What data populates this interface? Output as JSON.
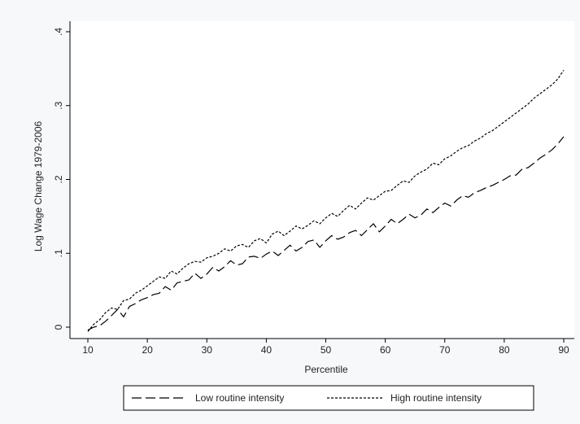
{
  "chart_data": {
    "type": "line",
    "xlabel": "Percentile",
    "ylabel": "Log Wage Change 1979-2006",
    "xlim": [
      10,
      90
    ],
    "ylim": [
      0,
      0.4
    ],
    "x_ticks": [
      10,
      20,
      30,
      40,
      50,
      60,
      70,
      80,
      90
    ],
    "x_tick_labels": [
      "10",
      "20",
      "30",
      "40",
      "50",
      "60",
      "70",
      "80",
      "90"
    ],
    "y_ticks": [
      0,
      0.1,
      0.2,
      0.3,
      0.4
    ],
    "y_tick_labels": [
      "0",
      ".1",
      ".2",
      ".3",
      ".4"
    ],
    "grid": false,
    "legend_position": "bottom",
    "series": [
      {
        "name": "Low routine intensity",
        "line_style": "long-dash",
        "color": "#000000",
        "x": [
          10,
          11,
          12,
          13,
          14,
          15,
          16,
          17,
          18,
          19,
          20,
          21,
          22,
          23,
          24,
          25,
          26,
          27,
          28,
          29,
          30,
          31,
          32,
          33,
          34,
          35,
          36,
          37,
          38,
          39,
          40,
          41,
          42,
          43,
          44,
          45,
          46,
          47,
          48,
          49,
          50,
          51,
          52,
          53,
          54,
          55,
          56,
          57,
          58,
          59,
          60,
          61,
          62,
          63,
          64,
          65,
          66,
          67,
          68,
          69,
          70,
          71,
          72,
          73,
          74,
          75,
          76,
          77,
          78,
          79,
          80,
          81,
          82,
          83,
          84,
          85,
          86,
          87,
          88,
          89,
          90
        ],
        "y": [
          -0.004,
          0.0,
          0.002,
          0.008,
          0.016,
          0.024,
          0.014,
          0.028,
          0.032,
          0.037,
          0.04,
          0.044,
          0.046,
          0.055,
          0.05,
          0.06,
          0.062,
          0.064,
          0.073,
          0.066,
          0.072,
          0.081,
          0.076,
          0.082,
          0.09,
          0.084,
          0.086,
          0.095,
          0.096,
          0.093,
          0.099,
          0.103,
          0.097,
          0.104,
          0.111,
          0.103,
          0.108,
          0.116,
          0.118,
          0.108,
          0.117,
          0.124,
          0.119,
          0.122,
          0.128,
          0.131,
          0.124,
          0.132,
          0.14,
          0.129,
          0.137,
          0.146,
          0.14,
          0.146,
          0.153,
          0.148,
          0.152,
          0.16,
          0.155,
          0.162,
          0.168,
          0.164,
          0.172,
          0.178,
          0.176,
          0.182,
          0.185,
          0.189,
          0.192,
          0.196,
          0.2,
          0.205,
          0.206,
          0.214,
          0.216,
          0.222,
          0.229,
          0.234,
          0.24,
          0.248,
          0.258
        ]
      },
      {
        "name": "High routine intensity",
        "line_style": "short-dash",
        "color": "#000000",
        "x": [
          10,
          11,
          12,
          13,
          14,
          15,
          16,
          17,
          18,
          19,
          20,
          21,
          22,
          23,
          24,
          25,
          26,
          27,
          28,
          29,
          30,
          31,
          32,
          33,
          34,
          35,
          36,
          37,
          38,
          39,
          40,
          41,
          42,
          43,
          44,
          45,
          46,
          47,
          48,
          49,
          50,
          51,
          52,
          53,
          54,
          55,
          56,
          57,
          58,
          59,
          60,
          61,
          62,
          63,
          64,
          65,
          66,
          67,
          68,
          69,
          70,
          71,
          72,
          73,
          74,
          75,
          76,
          77,
          78,
          79,
          80,
          81,
          82,
          83,
          84,
          85,
          86,
          87,
          88,
          89,
          90
        ],
        "y": [
          -0.006,
          0.004,
          0.01,
          0.02,
          0.026,
          0.024,
          0.036,
          0.038,
          0.046,
          0.05,
          0.056,
          0.062,
          0.068,
          0.066,
          0.076,
          0.072,
          0.08,
          0.086,
          0.089,
          0.088,
          0.094,
          0.096,
          0.1,
          0.106,
          0.103,
          0.11,
          0.112,
          0.108,
          0.117,
          0.12,
          0.114,
          0.126,
          0.13,
          0.124,
          0.13,
          0.137,
          0.133,
          0.138,
          0.144,
          0.14,
          0.148,
          0.154,
          0.15,
          0.158,
          0.165,
          0.16,
          0.168,
          0.175,
          0.172,
          0.178,
          0.184,
          0.185,
          0.192,
          0.198,
          0.196,
          0.205,
          0.21,
          0.214,
          0.222,
          0.22,
          0.228,
          0.232,
          0.238,
          0.243,
          0.246,
          0.252,
          0.256,
          0.262,
          0.266,
          0.272,
          0.278,
          0.284,
          0.29,
          0.296,
          0.302,
          0.31,
          0.316,
          0.322,
          0.328,
          0.336,
          0.348
        ]
      }
    ]
  }
}
